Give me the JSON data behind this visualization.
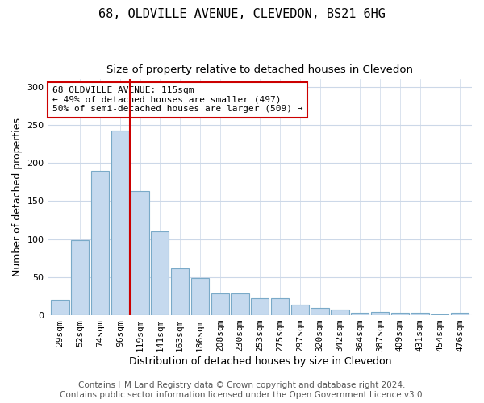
{
  "title_line1": "68, OLDVILLE AVENUE, CLEVEDON, BS21 6HG",
  "title_line2": "Size of property relative to detached houses in Clevedon",
  "xlabel": "Distribution of detached houses by size in Clevedon",
  "ylabel": "Number of detached properties",
  "categories": [
    "29sqm",
    "52sqm",
    "74sqm",
    "96sqm",
    "119sqm",
    "141sqm",
    "163sqm",
    "186sqm",
    "208sqm",
    "230sqm",
    "253sqm",
    "275sqm",
    "297sqm",
    "320sqm",
    "342sqm",
    "364sqm",
    "387sqm",
    "409sqm",
    "431sqm",
    "454sqm",
    "476sqm"
  ],
  "values": [
    20,
    99,
    190,
    243,
    163,
    110,
    62,
    49,
    29,
    29,
    22,
    22,
    14,
    10,
    8,
    3,
    4,
    3,
    3,
    1,
    3
  ],
  "bar_color": "#c5d9ee",
  "bar_edge_color": "#7aaac8",
  "vline_color": "#cc0000",
  "annotation_text": "68 OLDVILLE AVENUE: 115sqm\n← 49% of detached houses are smaller (497)\n50% of semi-detached houses are larger (509) →",
  "annotation_box_color": "#ffffff",
  "annotation_box_edge": "#cc0000",
  "ylim": [
    0,
    310
  ],
  "yticks": [
    0,
    50,
    100,
    150,
    200,
    250,
    300
  ],
  "footer_line1": "Contains HM Land Registry data © Crown copyright and database right 2024.",
  "footer_line2": "Contains public sector information licensed under the Open Government Licence v3.0.",
  "background_color": "#ffffff",
  "grid_color": "#ccd8e8",
  "title1_fontsize": 11,
  "title2_fontsize": 9.5,
  "xlabel_fontsize": 9,
  "ylabel_fontsize": 9,
  "tick_fontsize": 8,
  "footer_fontsize": 7.5
}
